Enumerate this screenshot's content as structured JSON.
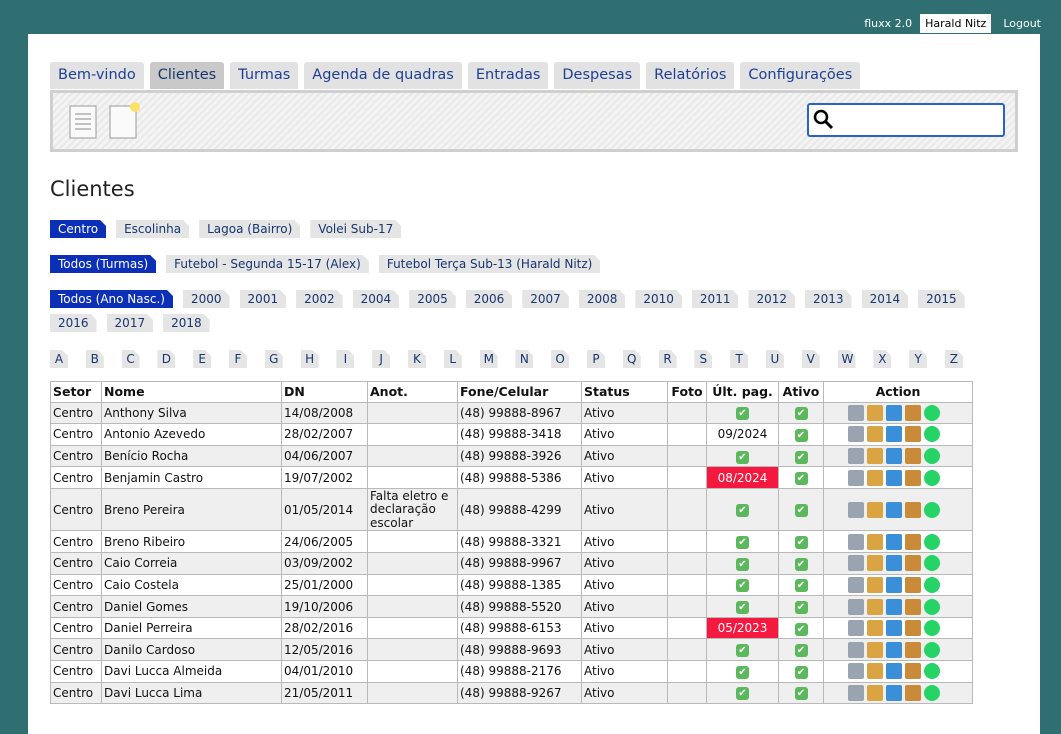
{
  "topbar": {
    "app": "fluxx 2.0",
    "user": "Harald Nitz",
    "logout": "Logout"
  },
  "tabs": [
    "Bem-vindo",
    "Clientes",
    "Turmas",
    "Agenda de quadras",
    "Entradas",
    "Despesas",
    "Relatórios",
    "Configurações"
  ],
  "active_tab": 1,
  "title": "Clientes",
  "filters": [
    {
      "items": [
        "Centro",
        "Escolinha",
        "Lagoa (Bairro)",
        "Volei Sub-17"
      ],
      "active": 0
    },
    {
      "items": [
        "Todos (Turmas)",
        "Futebol - Segunda 15-17 (Alex)",
        "Futebol Terça Sub-13 (Harald Nitz)"
      ],
      "active": 0
    },
    {
      "items": [
        "Todos (Ano Nasc.)",
        "2000",
        "2001",
        "2002",
        "2004",
        "2005",
        "2006",
        "2007",
        "2008",
        "2010",
        "2011",
        "2012",
        "2013",
        "2014",
        "2015",
        "2016",
        "2017",
        "2018"
      ],
      "active": 0
    }
  ],
  "letters": [
    "A",
    "B",
    "C",
    "D",
    "E",
    "F",
    "G",
    "H",
    "I",
    "J",
    "K",
    "L",
    "M",
    "N",
    "O",
    "P",
    "Q",
    "R",
    "S",
    "T",
    "U",
    "V",
    "W",
    "X",
    "Y",
    "Z"
  ],
  "table": {
    "headers": [
      "Setor",
      "Nome",
      "DN",
      "Anot.",
      "Fone/Celular",
      "Status",
      "Foto",
      "Últ. pag.",
      "Ativo",
      "Action"
    ],
    "overdue_color": "#f5193f",
    "rows": [
      {
        "setor": "Centro",
        "nome": "Anthony Silva",
        "dn": "14/08/2008",
        "fone": "(48) 99888-8967",
        "status": "Ativo"
      },
      {
        "setor": "Centro",
        "nome": "Antonio Azevedo",
        "dn": "28/02/2007",
        "fone": "(48) 99888-3418",
        "status": "Ativo",
        "ult_pag": "09/2024"
      },
      {
        "setor": "Centro",
        "nome": "Benício Rocha",
        "dn": "04/06/2007",
        "fone": "(48) 99888-3926",
        "status": "Ativo"
      },
      {
        "setor": "Centro",
        "nome": "Benjamin Castro",
        "dn": "19/07/2002",
        "fone": "(48) 99888-5386",
        "status": "Ativo",
        "ult_pag": "08/2024",
        "overdue": true
      },
      {
        "setor": "Centro",
        "nome": "Breno Pereira",
        "dn": "01/05/2014",
        "anot": "Falta eletro e declaração escolar",
        "fone": "(48) 99888-4299",
        "status": "Ativo"
      },
      {
        "setor": "Centro",
        "nome": "Breno Ribeiro",
        "dn": "24/06/2005",
        "fone": "(48) 99888-3321",
        "status": "Ativo"
      },
      {
        "setor": "Centro",
        "nome": "Caio Correia",
        "dn": "03/09/2002",
        "fone": "(48) 99888-9967",
        "status": "Ativo"
      },
      {
        "setor": "Centro",
        "nome": "Caio Costela",
        "dn": "25/01/2000",
        "fone": "(48) 99888-1385",
        "status": "Ativo"
      },
      {
        "setor": "Centro",
        "nome": "Daniel Gomes",
        "dn": "19/10/2006",
        "fone": "(48) 99888-5520",
        "status": "Ativo"
      },
      {
        "setor": "Centro",
        "nome": "Daniel Perreira",
        "dn": "28/02/2016",
        "fone": "(48) 99888-6153",
        "status": "Ativo",
        "ult_pag": "05/2023",
        "overdue": true
      },
      {
        "setor": "Centro",
        "nome": "Danilo Cardoso",
        "dn": "12/05/2016",
        "fone": "(48) 99888-9693",
        "status": "Ativo"
      },
      {
        "setor": "Centro",
        "nome": "Davi Lucca Almeida",
        "dn": "04/01/2010",
        "fone": "(48) 99888-2176",
        "status": "Ativo"
      },
      {
        "setor": "Centro",
        "nome": "Davi Lucca Lima",
        "dn": "21/05/2011",
        "fone": "(48) 99888-9267",
        "status": "Ativo"
      }
    ]
  }
}
